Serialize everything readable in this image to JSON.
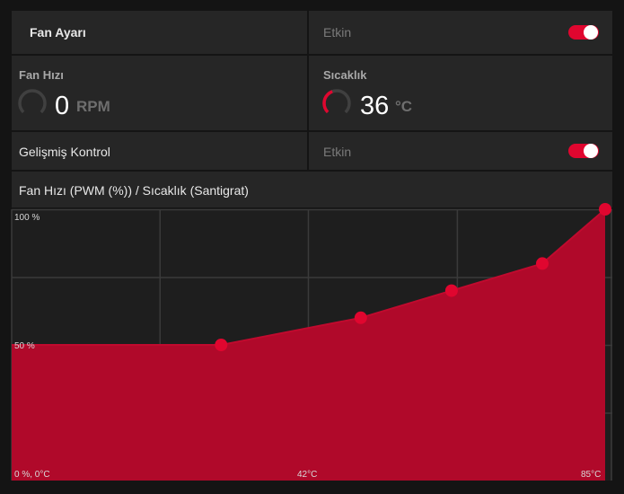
{
  "fan_setting": {
    "title": "Fan Ayarı",
    "status": "Etkin",
    "enabled": true
  },
  "fan_speed": {
    "title": "Fan Hızı",
    "value": "0",
    "unit": "RPM",
    "gauge_level": 0
  },
  "temperature": {
    "title": "Sıcaklık",
    "value": "36",
    "unit": "°C",
    "gauge_level": 0.36
  },
  "advanced_control": {
    "title": "Gelişmiş Kontrol",
    "status": "Etkin",
    "enabled": true
  },
  "curve_header": "Fan Hızı (PWM (%)) / Sıcaklık (Santigrat)",
  "colors": {
    "accent": "#e0062f",
    "fill": "#b0092a",
    "panel": "#262626",
    "background": "#141414"
  },
  "chart_data": {
    "type": "area",
    "title": "Fan Hızı (PWM (%)) / Sıcaklık (Santigrat)",
    "xlim": [
      0,
      85
    ],
    "ylim": [
      0,
      100
    ],
    "grid": true,
    "tick_labels": {
      "y_top": "100 %",
      "y_mid": "50 %",
      "origin": "0 %, 0°C",
      "x_mid": "42°C",
      "x_max": "85°C"
    },
    "series": [
      {
        "points": [
          {
            "x": 0,
            "y": 50
          },
          {
            "x": 30,
            "y": 50
          },
          {
            "x": 50,
            "y": 60
          },
          {
            "x": 63,
            "y": 70
          },
          {
            "x": 76,
            "y": 80
          },
          {
            "x": 85,
            "y": 100
          }
        ],
        "control_points_start": 1
      }
    ]
  }
}
